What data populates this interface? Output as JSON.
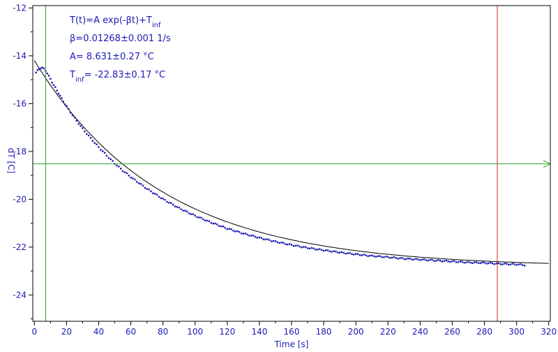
{
  "chart_data": {
    "type": "scatter",
    "title": "",
    "xlabel": "Time [s]",
    "ylabel": "dT [C]",
    "xlim": [
      -1,
      321
    ],
    "ylim": [
      -25.1,
      -11.9
    ],
    "xticks": [
      0,
      20,
      40,
      60,
      80,
      100,
      120,
      140,
      160,
      180,
      200,
      220,
      240,
      260,
      280,
      300,
      320
    ],
    "yticks": [
      -12,
      -14,
      -16,
      -18,
      -20,
      -22,
      -24
    ],
    "grid": false,
    "annotations": [
      {
        "main": "T(t)=A exp(-βt)+T",
        "sub": "inf",
        "rest": ""
      },
      {
        "main": "β=0.01268±0.001 1/s",
        "sub": "",
        "rest": ""
      },
      {
        "main": "A= 8.631±0.27 °C",
        "sub": "",
        "rest": ""
      },
      {
        "main": "T",
        "sub": "inf",
        "rest": "= -22.83±0.17 °C"
      }
    ],
    "fit": {
      "A": 8.631,
      "beta": 0.01268,
      "T_inf": -22.83
    },
    "series": [
      {
        "kind": "data",
        "color": "#1a1ab4",
        "x": [
          1,
          2,
          3,
          4,
          5,
          6,
          7,
          8,
          9,
          10,
          12,
          14,
          16,
          18,
          20,
          25,
          30,
          35,
          40,
          45,
          50,
          55,
          60,
          70,
          80,
          90,
          100,
          110,
          120,
          130,
          140,
          150,
          160,
          170,
          180,
          190,
          200,
          210,
          220,
          230,
          240,
          250,
          260,
          270,
          280,
          290,
          300,
          305
        ],
        "y": [
          -14.7,
          -14.62,
          -14.55,
          -14.5,
          -14.5,
          -14.55,
          -14.62,
          -14.72,
          -14.85,
          -14.97,
          -15.22,
          -15.45,
          -15.68,
          -15.9,
          -16.12,
          -16.6,
          -17.05,
          -17.45,
          -17.82,
          -18.17,
          -18.5,
          -18.8,
          -19.07,
          -19.56,
          -19.99,
          -20.37,
          -20.69,
          -20.97,
          -21.22,
          -21.43,
          -21.61,
          -21.77,
          -21.91,
          -22.03,
          -22.13,
          -22.22,
          -22.3,
          -22.37,
          -22.42,
          -22.48,
          -22.52,
          -22.56,
          -22.6,
          -22.64,
          -22.66,
          -22.7,
          -22.72,
          -22.75
        ]
      }
    ],
    "cursors": {
      "vertical_green_x": 7,
      "vertical_red_x": 288,
      "horizontal_green_y": -18.52
    },
    "colors": {
      "data": "#1a1ab4",
      "fit": "#000000",
      "cursor_green": "#2ca02c",
      "cursor_red": "#d62728",
      "axis_text": "#1a1ab4"
    }
  }
}
